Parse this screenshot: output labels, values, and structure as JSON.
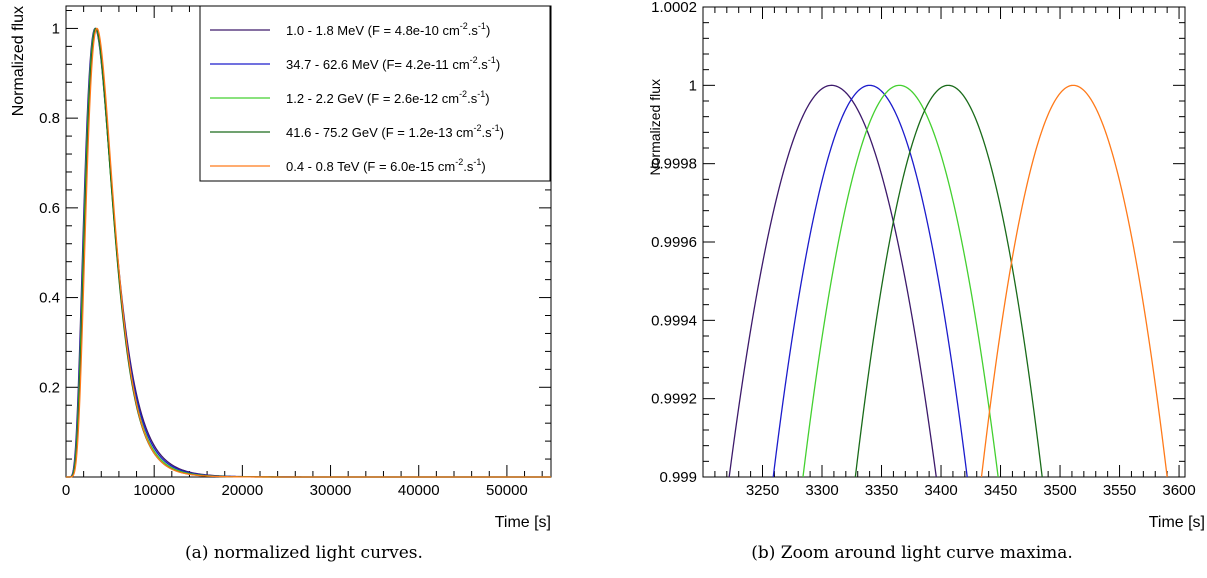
{
  "chart_data": [
    {
      "type": "line",
      "caption": "(a) normalized light curves.",
      "xlabel": "Time [s]",
      "ylabel": "Normalized flux",
      "xlim": [
        0,
        55000
      ],
      "ylim": [
        0,
        1.05
      ],
      "xticks": [
        0,
        10000,
        20000,
        30000,
        40000,
        50000
      ],
      "yticks": [
        0.2,
        0.4,
        0.6,
        0.8,
        1
      ],
      "ytick_labels": [
        "0.2",
        "0.4",
        "0.6",
        "0.8",
        "1"
      ],
      "grid": false,
      "legend_position": "top-right",
      "series": [
        {
          "name": "1.0 - 1.8 MeV (F = 4.8e-10 cm-2.s-1)",
          "legend_text": "1.0 - 1.8 MeV (F = 4.8e-10 cm",
          "legend_exp": "-2",
          "legend_mid": ".s",
          "legend_exp2": "-1",
          "legend_end": ")",
          "color": "#3d1a6b",
          "peak_time": 3308,
          "decay_scale": 4700
        },
        {
          "name": "34.7 - 62.6 MeV (F= 4.2e-11 cm-2.s-1)",
          "legend_text": "34.7 - 62.6 MeV (F= 4.2e-11 cm",
          "legend_exp": "-2",
          "legend_mid": ".s",
          "legend_exp2": "-1",
          "legend_end": ")",
          "color": "#1c1ccc",
          "peak_time": 3340,
          "decay_scale": 4550
        },
        {
          "name": "1.2 - 2.2 GeV (F = 2.6e-12 cm-2.s-1)",
          "legend_text": "1.2 - 2.2 GeV (F = 2.6e-12 cm",
          "legend_exp": "-2",
          "legend_mid": ".s",
          "legend_exp2": "-1",
          "legend_end": ")",
          "color": "#44d030",
          "peak_time": 3365,
          "decay_scale": 4400
        },
        {
          "name": "41.6 - 75.2 GeV (F = 1.2e-13 cm-2.s-1)",
          "legend_text": "41.6 - 75.2 GeV (F = 1.2e-13 cm",
          "legend_exp": "-2",
          "legend_mid": ".s",
          "legend_exp2": "-1",
          "legend_end": ")",
          "color": "#1a6b1a",
          "peak_time": 3406,
          "decay_scale": 4250
        },
        {
          "name": "0.4 - 0.8 TeV (F = 6.0e-15 cm-2.s-1)",
          "legend_text": "0.4 - 0.8 TeV (F = 6.0e-15 cm",
          "legend_exp": "-2",
          "legend_mid": ".s",
          "legend_exp2": "-1",
          "legend_end": ")",
          "color": "#ff7a1a",
          "peak_time": 3511,
          "decay_scale": 4000
        }
      ]
    },
    {
      "type": "line",
      "caption": "(b) Zoom around light curve maxima.",
      "xlabel": "Time [s]",
      "ylabel": "Normalized flux",
      "xlim": [
        3200,
        3605
      ],
      "ylim": [
        0.999,
        1.0002
      ],
      "xticks": [
        3250,
        3300,
        3350,
        3400,
        3450,
        3500,
        3550,
        3600
      ],
      "yticks": [
        0.999,
        0.9992,
        0.9994,
        0.9996,
        0.9998,
        1,
        1.0002
      ],
      "ytick_labels": [
        "0.999",
        "0.9992",
        "0.9994",
        "0.9996",
        "0.9998",
        "1",
        "1.0002"
      ],
      "grid": false,
      "series": [
        {
          "color": "#3d1a6b",
          "peak_time": 3308,
          "peak_value": 1.0,
          "crossings_at_0999": [
            3222,
            3396
          ]
        },
        {
          "color": "#1c1ccc",
          "peak_time": 3340,
          "peak_value": 1.0,
          "crossings_at_0999": [
            3259,
            3422
          ]
        },
        {
          "color": "#44d030",
          "peak_time": 3365,
          "peak_value": 1.0,
          "crossings_at_0999": [
            3284,
            3448
          ]
        },
        {
          "color": "#1a6b1a",
          "peak_time": 3406,
          "peak_value": 1.0,
          "crossings_at_0999": [
            3328,
            3485
          ]
        },
        {
          "color": "#ff7a1a",
          "peak_time": 3511,
          "peak_value": 1.0,
          "crossings_at_0999": [
            3434,
            3590
          ]
        }
      ]
    }
  ]
}
